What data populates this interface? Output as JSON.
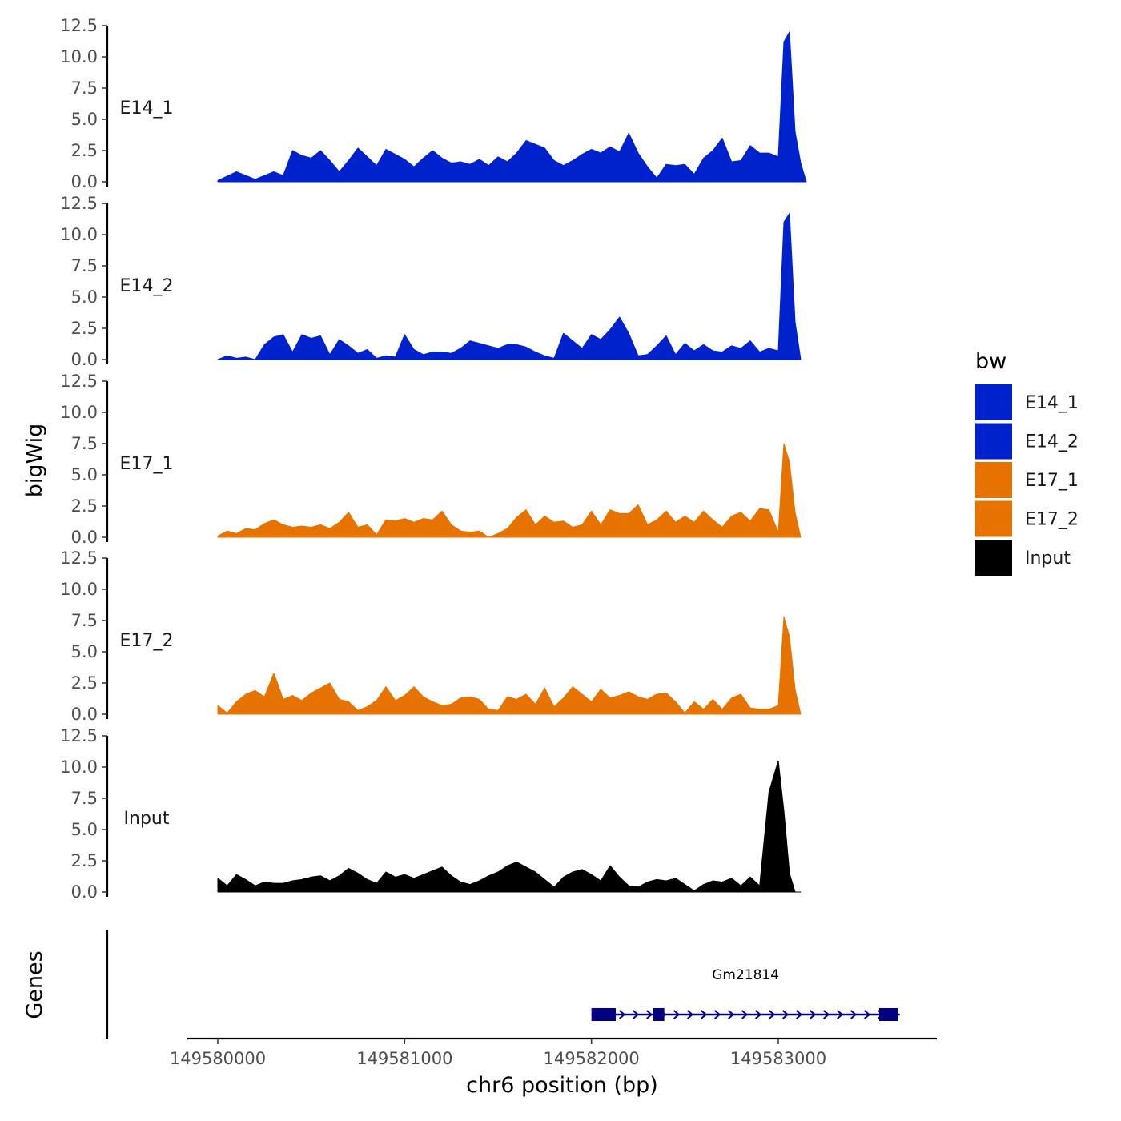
{
  "chart_data": {
    "type": "area",
    "ylabel": "bigWig",
    "xlabel": "chr6 position (bp)",
    "ylim": [
      0,
      12.5
    ],
    "y_ticks": [
      "0.0",
      "2.5",
      "5.0",
      "7.5",
      "10.0",
      "12.5"
    ],
    "y_tick_values": [
      0,
      2.5,
      5,
      7.5,
      10,
      12.5
    ],
    "xlim": [
      149579850,
      149583850
    ],
    "x_ticks": [
      "149580000",
      "149581000",
      "149582000",
      "149583000"
    ],
    "x_tick_values": [
      149580000,
      149581000,
      149582000,
      149583000
    ],
    "legend": {
      "title": "bw",
      "position": "right",
      "items": [
        {
          "label": "E14_1",
          "color": "#0022CC"
        },
        {
          "label": "E14_2",
          "color": "#0022CC"
        },
        {
          "label": "E17_1",
          "color": "#E67300"
        },
        {
          "label": "E17_2",
          "color": "#E67300"
        },
        {
          "label": "Input",
          "color": "#000000"
        }
      ]
    },
    "series": [
      {
        "name": "E14_1",
        "color": "#0022CC",
        "x": [
          149580000,
          149580100,
          149580200,
          149580300,
          149580350,
          149580400,
          149580450,
          149580500,
          149580550,
          149580600,
          149580650,
          149580700,
          149580750,
          149580800,
          149580850,
          149580900,
          149580950,
          149581000,
          149581050,
          149581100,
          149581150,
          149581200,
          149581250,
          149581300,
          149581350,
          149581400,
          149581450,
          149581500,
          149581550,
          149581600,
          149581650,
          149581700,
          149581750,
          149581800,
          149581850,
          149581900,
          149581950,
          149582000,
          149582050,
          149582100,
          149582150,
          149582200,
          149582250,
          149582300,
          149582350,
          149582400,
          149582450,
          149582500,
          149582550,
          149582600,
          149582650,
          149582700,
          149582750,
          149582800,
          149582850,
          149582900,
          149582950,
          149583000,
          149583030,
          149583060,
          149583090,
          149583120,
          149583150
        ],
        "y": [
          0.1,
          0.8,
          0.2,
          0.8,
          0.5,
          2.5,
          2.1,
          1.9,
          2.5,
          1.7,
          0.8,
          1.7,
          2.7,
          2.0,
          1.3,
          2.6,
          2.2,
          1.8,
          1.2,
          1.9,
          2.5,
          1.9,
          1.5,
          1.6,
          1.4,
          1.8,
          1.3,
          2.0,
          1.6,
          2.3,
          3.3,
          3.0,
          2.7,
          1.7,
          1.3,
          1.7,
          2.2,
          2.6,
          2.3,
          2.8,
          2.4,
          3.9,
          2.3,
          1.2,
          0.3,
          1.4,
          1.3,
          1.4,
          0.6,
          1.9,
          2.5,
          3.5,
          1.6,
          1.7,
          2.9,
          2.3,
          2.3,
          2.0,
          11.2,
          12.0,
          4.0,
          1.5,
          0.0
        ]
      },
      {
        "name": "E14_2",
        "color": "#0022CC",
        "x": [
          149580000,
          149580050,
          149580100,
          149580150,
          149580200,
          149580250,
          149580300,
          149580350,
          149580400,
          149580450,
          149580500,
          149580550,
          149580600,
          149580650,
          149580700,
          149580750,
          149580800,
          149580850,
          149580900,
          149580950,
          149581000,
          149581050,
          149581100,
          149581150,
          149581200,
          149581250,
          149581300,
          149581350,
          149581400,
          149581450,
          149581500,
          149581550,
          149581600,
          149581650,
          149581700,
          149581750,
          149581800,
          149581850,
          149581900,
          149581950,
          149582000,
          149582050,
          149582100,
          149582150,
          149582200,
          149582250,
          149582300,
          149582350,
          149582400,
          149582450,
          149582500,
          149582550,
          149582600,
          149582650,
          149582700,
          149582750,
          149582800,
          149582850,
          149582900,
          149582950,
          149583000,
          149583030,
          149583060,
          149583090,
          149583120
        ],
        "y": [
          0.0,
          0.3,
          0.1,
          0.2,
          0.0,
          1.2,
          1.8,
          2.0,
          0.6,
          2.0,
          1.7,
          1.9,
          0.4,
          1.6,
          1.1,
          0.5,
          0.8,
          0.1,
          0.3,
          0.2,
          2.0,
          0.8,
          0.4,
          0.6,
          0.6,
          0.5,
          0.9,
          1.5,
          1.3,
          1.1,
          0.9,
          1.2,
          1.2,
          1.0,
          0.6,
          0.3,
          0.1,
          2.1,
          1.5,
          0.9,
          2.0,
          1.6,
          2.4,
          3.4,
          2.1,
          0.3,
          0.4,
          1.1,
          1.9,
          0.4,
          1.3,
          0.7,
          1.2,
          0.7,
          0.6,
          1.1,
          0.9,
          1.5,
          0.6,
          0.9,
          0.7,
          11.0,
          11.7,
          3.0,
          0.0
        ]
      },
      {
        "name": "E17_1",
        "color": "#E67300",
        "x": [
          149580000,
          149580050,
          149580100,
          149580150,
          149580200,
          149580250,
          149580300,
          149580350,
          149580400,
          149580450,
          149580500,
          149580550,
          149580600,
          149580650,
          149580700,
          149580750,
          149580800,
          149580850,
          149580900,
          149580950,
          149581000,
          149581050,
          149581100,
          149581150,
          149581200,
          149581250,
          149581300,
          149581350,
          149581400,
          149581450,
          149581500,
          149581550,
          149581600,
          149581650,
          149581700,
          149581750,
          149581800,
          149581850,
          149581900,
          149581950,
          149582000,
          149582050,
          149582100,
          149582150,
          149582200,
          149582250,
          149582300,
          149582350,
          149582400,
          149582450,
          149582500,
          149582550,
          149582600,
          149582650,
          149582700,
          149582750,
          149582800,
          149582850,
          149582900,
          149582950,
          149583000,
          149583030,
          149583060,
          149583090,
          149583120
        ],
        "y": [
          0.1,
          0.5,
          0.3,
          0.7,
          0.6,
          1.1,
          1.4,
          1.0,
          0.8,
          0.9,
          0.8,
          1.0,
          0.7,
          1.2,
          2.0,
          0.8,
          1.0,
          0.2,
          1.4,
          1.3,
          1.5,
          1.2,
          1.5,
          1.4,
          2.1,
          1.0,
          0.5,
          0.4,
          0.5,
          0.0,
          0.3,
          0.7,
          1.6,
          2.2,
          1.0,
          1.7,
          1.2,
          1.3,
          0.8,
          1.0,
          2.1,
          1.0,
          2.2,
          1.9,
          1.9,
          2.6,
          1.0,
          1.4,
          2.1,
          1.2,
          1.7,
          1.2,
          2.1,
          1.4,
          0.8,
          1.7,
          2.0,
          1.3,
          2.3,
          2.2,
          0.4,
          7.5,
          6.0,
          2.0,
          0.0
        ]
      },
      {
        "name": "E17_2",
        "color": "#E67300",
        "x": [
          149580000,
          149580050,
          149580100,
          149580150,
          149580200,
          149580250,
          149580300,
          149580350,
          149580400,
          149580450,
          149580500,
          149580550,
          149580600,
          149580650,
          149580700,
          149580750,
          149580800,
          149580850,
          149580900,
          149580950,
          149581000,
          149581050,
          149581100,
          149581150,
          149581200,
          149581250,
          149581300,
          149581350,
          149581400,
          149581450,
          149581500,
          149581550,
          149581600,
          149581650,
          149581700,
          149581750,
          149581800,
          149581850,
          149581900,
          149581950,
          149582000,
          149582050,
          149582100,
          149582150,
          149582200,
          149582250,
          149582300,
          149582350,
          149582400,
          149582450,
          149582500,
          149582550,
          149582600,
          149582650,
          149582700,
          149582750,
          149582800,
          149582850,
          149582900,
          149582950,
          149583000,
          149583030,
          149583060,
          149583090,
          149583120
        ],
        "y": [
          0.7,
          0.1,
          1.0,
          1.6,
          1.9,
          1.4,
          3.3,
          1.2,
          1.5,
          1.1,
          1.7,
          2.1,
          2.5,
          1.2,
          1.0,
          0.3,
          0.6,
          1.1,
          2.2,
          1.1,
          1.5,
          2.2,
          1.4,
          1.0,
          0.7,
          0.8,
          1.3,
          1.4,
          1.2,
          0.4,
          0.3,
          1.4,
          1.2,
          1.6,
          0.8,
          2.1,
          0.6,
          1.3,
          2.2,
          1.6,
          1.0,
          2.0,
          1.3,
          1.5,
          1.8,
          1.4,
          1.2,
          1.6,
          1.7,
          1.0,
          0.1,
          1.0,
          0.4,
          1.2,
          0.4,
          1.3,
          1.6,
          0.5,
          0.4,
          0.4,
          0.7,
          7.8,
          6.2,
          2.0,
          0.0
        ]
      },
      {
        "name": "Input",
        "color": "#000000",
        "x": [
          149580000,
          149580050,
          149580100,
          149580150,
          149580200,
          149580250,
          149580300,
          149580350,
          149580400,
          149580450,
          149580500,
          149580550,
          149580600,
          149580650,
          149580700,
          149580750,
          149580800,
          149580850,
          149580900,
          149580950,
          149581000,
          149581050,
          149581100,
          149581150,
          149581200,
          149581250,
          149581300,
          149581350,
          149581400,
          149581450,
          149581500,
          149581550,
          149581600,
          149581650,
          149581700,
          149581750,
          149581800,
          149581850,
          149581900,
          149581950,
          149582000,
          149582050,
          149582100,
          149582150,
          149582200,
          149582250,
          149582300,
          149582350,
          149582400,
          149582450,
          149582500,
          149582550,
          149582600,
          149582650,
          149582700,
          149582750,
          149582800,
          149582850,
          149582900,
          149582950,
          149583000,
          149583030,
          149583060,
          149583090,
          149583120
        ],
        "y": [
          1.1,
          0.5,
          1.4,
          1.0,
          0.5,
          0.8,
          0.7,
          0.7,
          0.9,
          1.0,
          1.2,
          1.3,
          0.9,
          1.3,
          1.9,
          1.5,
          1.0,
          0.7,
          1.6,
          1.2,
          1.4,
          1.1,
          1.4,
          1.7,
          2.0,
          1.3,
          0.8,
          0.6,
          0.9,
          1.3,
          1.6,
          2.1,
          2.4,
          2.0,
          1.6,
          1.0,
          0.4,
          1.2,
          1.6,
          1.8,
          1.4,
          0.9,
          2.1,
          1.2,
          0.5,
          0.4,
          0.8,
          1.0,
          0.9,
          1.1,
          0.6,
          0.1,
          0.6,
          0.9,
          0.8,
          1.1,
          0.5,
          1.2,
          0.5,
          8.0,
          10.5,
          6.5,
          1.5,
          0.0,
          0.0
        ]
      }
    ],
    "genes": {
      "title": "Genes",
      "items": [
        {
          "name": "Gm21814",
          "start": 149582000,
          "end": 149583650,
          "strand": "+",
          "exons": [
            [
              149582000,
              149582130
            ],
            [
              149582330,
              149582390
            ],
            [
              149583540,
              149583640
            ]
          ]
        }
      ]
    }
  }
}
